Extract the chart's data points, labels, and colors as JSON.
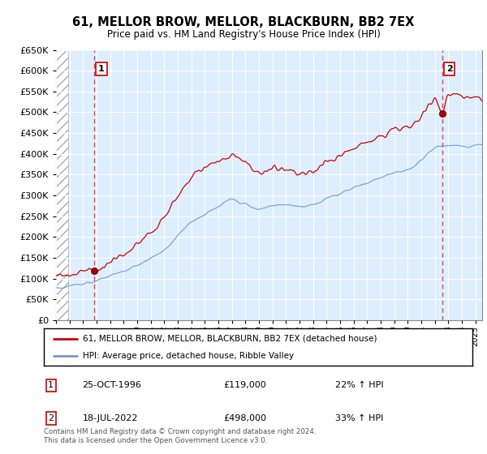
{
  "title": "61, MELLOR BROW, MELLOR, BLACKBURN, BB2 7EX",
  "subtitle": "Price paid vs. HM Land Registry's House Price Index (HPI)",
  "legend_line1": "61, MELLOR BROW, MELLOR, BLACKBURN, BB2 7EX (detached house)",
  "legend_line2": "HPI: Average price, detached house, Ribble Valley",
  "transaction1_date": "25-OCT-1996",
  "transaction1_price": "£119,000",
  "transaction1_hpi": "22% ↑ HPI",
  "transaction2_date": "18-JUL-2022",
  "transaction2_price": "£498,000",
  "transaction2_hpi": "33% ↑ HPI",
  "footer": "Contains HM Land Registry data © Crown copyright and database right 2024.\nThis data is licensed under the Open Government Licence v3.0.",
  "price_line_color": "#cc0000",
  "hpi_line_color": "#7799cc",
  "dashed_line_color": "#dd4444",
  "ylim": [
    0,
    650000
  ],
  "yticks": [
    0,
    50000,
    100000,
    150000,
    200000,
    250000,
    300000,
    350000,
    400000,
    450000,
    500000,
    550000,
    600000,
    650000
  ],
  "xlim_start": 1994.0,
  "xlim_end": 2025.5,
  "transaction1_x": 1996.82,
  "transaction1_y": 119000,
  "transaction2_x": 2022.54,
  "transaction2_y": 498000,
  "hatch_end": 1994.92
}
